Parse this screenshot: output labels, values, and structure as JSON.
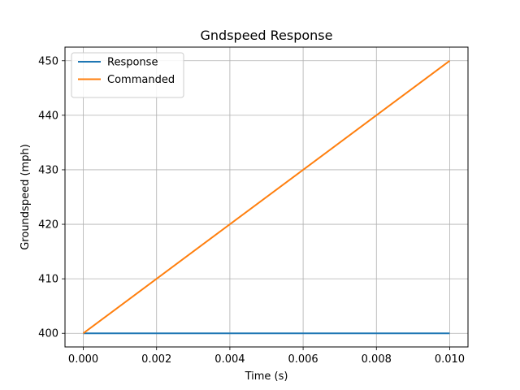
{
  "chart_data": {
    "type": "line",
    "title": "Gndspeed Response",
    "xlabel": "Time (s)",
    "ylabel": "Groundspeed (mph)",
    "xlim": [
      -0.0005,
      0.0105
    ],
    "ylim": [
      397.5,
      452.5
    ],
    "x_ticks": [
      0.0,
      0.002,
      0.004,
      0.006,
      0.008,
      0.01
    ],
    "x_tick_labels": [
      "0.000",
      "0.002",
      "0.004",
      "0.006",
      "0.008",
      "0.010"
    ],
    "y_ticks": [
      400,
      410,
      420,
      430,
      440,
      450
    ],
    "y_tick_labels": [
      "400",
      "410",
      "420",
      "430",
      "440",
      "450"
    ],
    "grid": true,
    "legend_position": "top-left",
    "series": [
      {
        "name": "Response",
        "color": "#1f77b4",
        "x": [
          0.0,
          0.01
        ],
        "y": [
          400,
          400
        ]
      },
      {
        "name": "Commanded",
        "color": "#ff7f0e",
        "x": [
          0.0,
          0.01
        ],
        "y": [
          400,
          450
        ]
      }
    ]
  }
}
